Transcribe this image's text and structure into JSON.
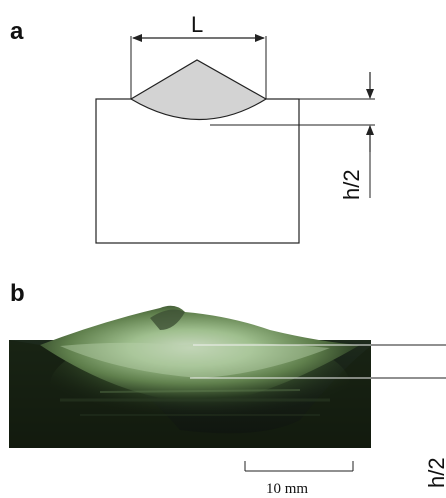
{
  "panels": {
    "a": {
      "label": "a"
    },
    "b": {
      "label": "b"
    }
  },
  "schematic": {
    "width_label": "L",
    "height_label": "h/2",
    "bead_fill": "#d3d3d3",
    "line_color": "#222222"
  },
  "photo": {
    "height_label": "h/2",
    "scale_label": "10 mm"
  }
}
